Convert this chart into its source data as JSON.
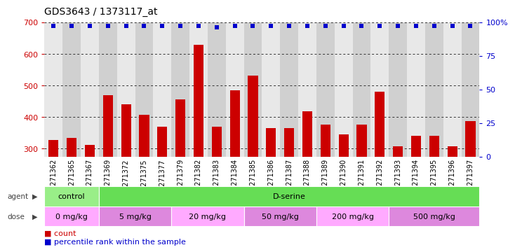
{
  "title": "GDS3643 / 1373117_at",
  "samples": [
    "GSM271362",
    "GSM271365",
    "GSM271367",
    "GSM271369",
    "GSM271372",
    "GSM271375",
    "GSM271377",
    "GSM271379",
    "GSM271382",
    "GSM271383",
    "GSM271384",
    "GSM271385",
    "GSM271386",
    "GSM271387",
    "GSM271388",
    "GSM271389",
    "GSM271390",
    "GSM271391",
    "GSM271392",
    "GSM271393",
    "GSM271394",
    "GSM271395",
    "GSM271396",
    "GSM271397"
  ],
  "counts": [
    328,
    335,
    311,
    468,
    440,
    408,
    370,
    455,
    628,
    370,
    485,
    530,
    365,
    365,
    418,
    375,
    345,
    375,
    480,
    308,
    340,
    340,
    308,
    387
  ],
  "percentile": [
    97,
    97,
    97,
    97,
    97,
    97,
    97,
    97,
    97,
    96,
    97,
    97,
    97,
    97,
    97,
    97,
    97,
    97,
    97,
    97,
    97,
    97,
    97,
    97
  ],
  "bar_color": "#cc0000",
  "dot_color": "#0000cc",
  "ylim_left": [
    275,
    700
  ],
  "ylim_right": [
    0,
    100
  ],
  "yticks_left": [
    300,
    400,
    500,
    600,
    700
  ],
  "yticks_right": [
    0,
    25,
    50,
    75,
    100
  ],
  "agent_row": [
    {
      "label": "control",
      "start": 0,
      "end": 3,
      "color": "#99ee88"
    },
    {
      "label": "D-serine",
      "start": 3,
      "end": 24,
      "color": "#66dd55"
    }
  ],
  "dose_row": [
    {
      "label": "0 mg/kg",
      "start": 0,
      "end": 3,
      "color": "#ffaaff"
    },
    {
      "label": "5 mg/kg",
      "start": 3,
      "end": 7,
      "color": "#dd88dd"
    },
    {
      "label": "20 mg/kg",
      "start": 7,
      "end": 11,
      "color": "#ffaaff"
    },
    {
      "label": "50 mg/kg",
      "start": 11,
      "end": 15,
      "color": "#dd88dd"
    },
    {
      "label": "200 mg/kg",
      "start": 15,
      "end": 19,
      "color": "#ffaaff"
    },
    {
      "label": "500 mg/kg",
      "start": 19,
      "end": 24,
      "color": "#dd88dd"
    }
  ],
  "col_colors": [
    "#e8e8e8",
    "#d0d0d0"
  ],
  "plot_bg": "#f8f8f8",
  "grid_color": "#333333",
  "tick_color_left": "#cc0000",
  "tick_color_right": "#0000cc",
  "label_fontsize": 7,
  "title_fontsize": 10
}
